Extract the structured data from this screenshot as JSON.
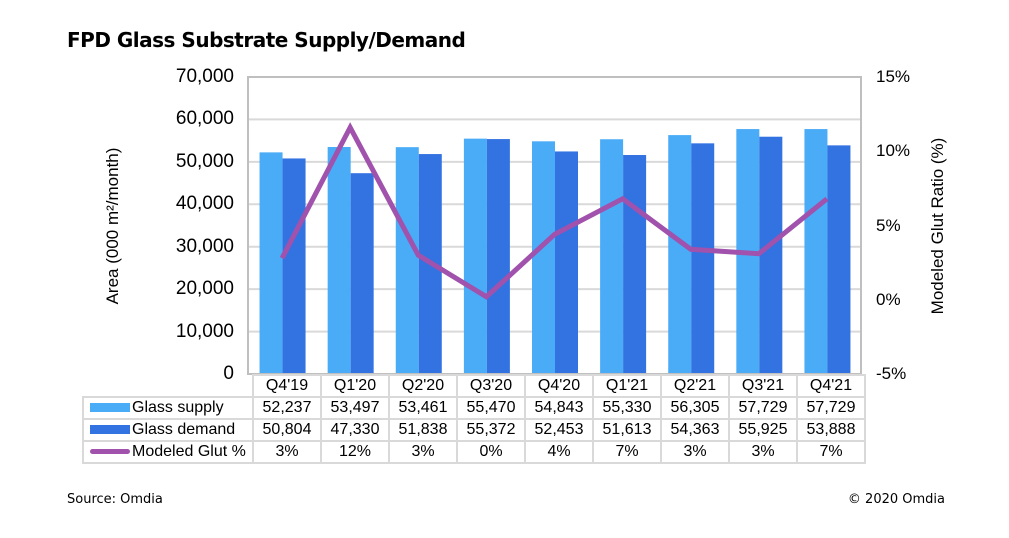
{
  "title": "FPD Glass Substrate Supply/Demand",
  "source": "Source: Omdia",
  "copyright": "© 2020 Omdia",
  "colors": {
    "supply": "#4aabf7",
    "demand": "#3372e1",
    "glut": "#a052ac",
    "grid": "#d9d9d9"
  },
  "chart_data": {
    "type": "bar",
    "title": "FPD Glass Substrate Supply/Demand",
    "categories": [
      "Q4'19",
      "Q1'20",
      "Q2'20",
      "Q3'20",
      "Q4'20",
      "Q1'21",
      "Q2'21",
      "Q3'21",
      "Q4'21"
    ],
    "ylabel": "Area (000 m²/month)",
    "y2label": "Modeled Glut Ratio (%)",
    "ylim": [
      0,
      70000
    ],
    "y2lim": [
      -5,
      15
    ],
    "yticks": [
      "0",
      "10,000",
      "20,000",
      "30,000",
      "40,000",
      "50,000",
      "60,000",
      "70,000"
    ],
    "y2ticks": [
      "-5%",
      "0%",
      "5%",
      "10%",
      "15%"
    ],
    "grid": true,
    "legend": "data-table-below",
    "series": [
      {
        "name": "Glass supply",
        "type": "bar",
        "axis": "left",
        "values": [
          52237,
          53497,
          53461,
          55470,
          54843,
          55330,
          56305,
          57729,
          57729
        ],
        "labels": [
          "52,237",
          "53,497",
          "53,461",
          "55,470",
          "54,843",
          "55,330",
          "56,305",
          "57,729",
          "57,729"
        ]
      },
      {
        "name": "Glass demand",
        "type": "bar",
        "axis": "left",
        "values": [
          50804,
          47330,
          51838,
          55372,
          52453,
          51613,
          54363,
          55925,
          53888
        ],
        "labels": [
          "50,804",
          "47,330",
          "51,838",
          "55,372",
          "52,453",
          "51,613",
          "54,363",
          "55,925",
          "53,888"
        ]
      },
      {
        "name": "Modeled Glut %",
        "type": "line",
        "axis": "right",
        "values": [
          2.8,
          11.6,
          3.0,
          0.2,
          4.4,
          6.8,
          3.4,
          3.1,
          6.8
        ],
        "labels": [
          "3%",
          "12%",
          "3%",
          "0%",
          "4%",
          "7%",
          "3%",
          "3%",
          "7%"
        ]
      }
    ]
  }
}
